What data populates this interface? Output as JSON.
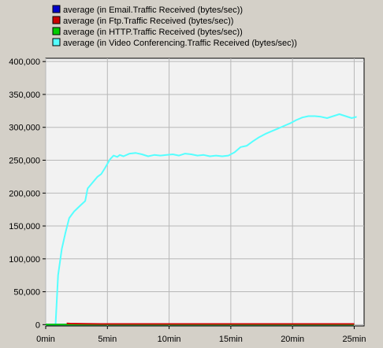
{
  "chart_data": {
    "type": "line",
    "title": "",
    "xlabel": "",
    "ylabel": "",
    "xlim": [
      0,
      25.8
    ],
    "ylim": [
      -2000,
      405000
    ],
    "x_ticks": [
      {
        "value": 0,
        "label": "0min"
      },
      {
        "value": 5,
        "label": "5min"
      },
      {
        "value": 10,
        "label": "10min"
      },
      {
        "value": 15,
        "label": "15min"
      },
      {
        "value": 20,
        "label": "20min"
      },
      {
        "value": 25,
        "label": "25min"
      }
    ],
    "y_ticks": [
      {
        "value": 0,
        "label": "0"
      },
      {
        "value": 50000,
        "label": "50,000"
      },
      {
        "value": 100000,
        "label": "100,000"
      },
      {
        "value": 150000,
        "label": "150,000"
      },
      {
        "value": 200000,
        "label": "200,000"
      },
      {
        "value": 250000,
        "label": "250,000"
      },
      {
        "value": 300000,
        "label": "300,000"
      },
      {
        "value": 350000,
        "label": "350,000"
      },
      {
        "value": 400000,
        "label": "400,000"
      }
    ],
    "legend_position": "top",
    "series": [
      {
        "name": "average (in Email.Traffic Received (bytes/sec))",
        "color": "#0000cc",
        "x": [
          0,
          2,
          5,
          10,
          15,
          20,
          25
        ],
        "y": [
          0,
          0,
          0,
          0,
          0,
          0,
          0
        ]
      },
      {
        "name": "average (in Ftp.Traffic Received (bytes/sec))",
        "color": "#cc0000",
        "x": [
          1.7,
          2,
          3,
          5,
          10,
          15,
          20,
          25
        ],
        "y": [
          2000,
          1600,
          1200,
          1000,
          1000,
          1000,
          1000,
          1000
        ]
      },
      {
        "name": "average (in HTTP.Traffic Received (bytes/sec))",
        "color": "#00cc00",
        "x": [
          0,
          5,
          10,
          15,
          20,
          25
        ],
        "y": [
          0,
          0,
          0,
          0,
          0,
          0
        ]
      },
      {
        "name": "average (in Video Conferencing.Traffic Received (bytes/sec))",
        "color": "#55ffff",
        "x": [
          0,
          0.8,
          1.0,
          1.3,
          1.6,
          1.9,
          2.3,
          2.8,
          3.2,
          3.4,
          3.8,
          4.2,
          4.5,
          4.8,
          5.2,
          5.5,
          5.8,
          6.0,
          6.3,
          6.8,
          7.3,
          7.8,
          8.3,
          8.8,
          9.3,
          9.8,
          10.3,
          10.8,
          11.3,
          11.8,
          12.3,
          12.8,
          13.3,
          13.8,
          14.3,
          14.8,
          15.3,
          15.8,
          16.3,
          16.8,
          17.3,
          17.8,
          18.3,
          18.8,
          19.3,
          19.8,
          20.3,
          20.8,
          21.3,
          21.8,
          22.3,
          22.8,
          23.3,
          23.8,
          24.3,
          24.8,
          25.2
        ],
        "y": [
          0,
          0,
          75000,
          115000,
          140000,
          162000,
          172000,
          181000,
          188000,
          207000,
          216000,
          225000,
          229000,
          238000,
          251000,
          257000,
          255000,
          258000,
          256000,
          260000,
          261000,
          259000,
          256000,
          258000,
          257000,
          258000,
          259000,
          257000,
          260000,
          259000,
          257000,
          258000,
          256000,
          257000,
          256000,
          257000,
          262000,
          270000,
          272000,
          279000,
          285000,
          290000,
          294000,
          298000,
          302000,
          306000,
          311000,
          315000,
          317000,
          317000,
          316000,
          314000,
          317000,
          320000,
          317000,
          314000,
          316000
        ]
      }
    ]
  }
}
